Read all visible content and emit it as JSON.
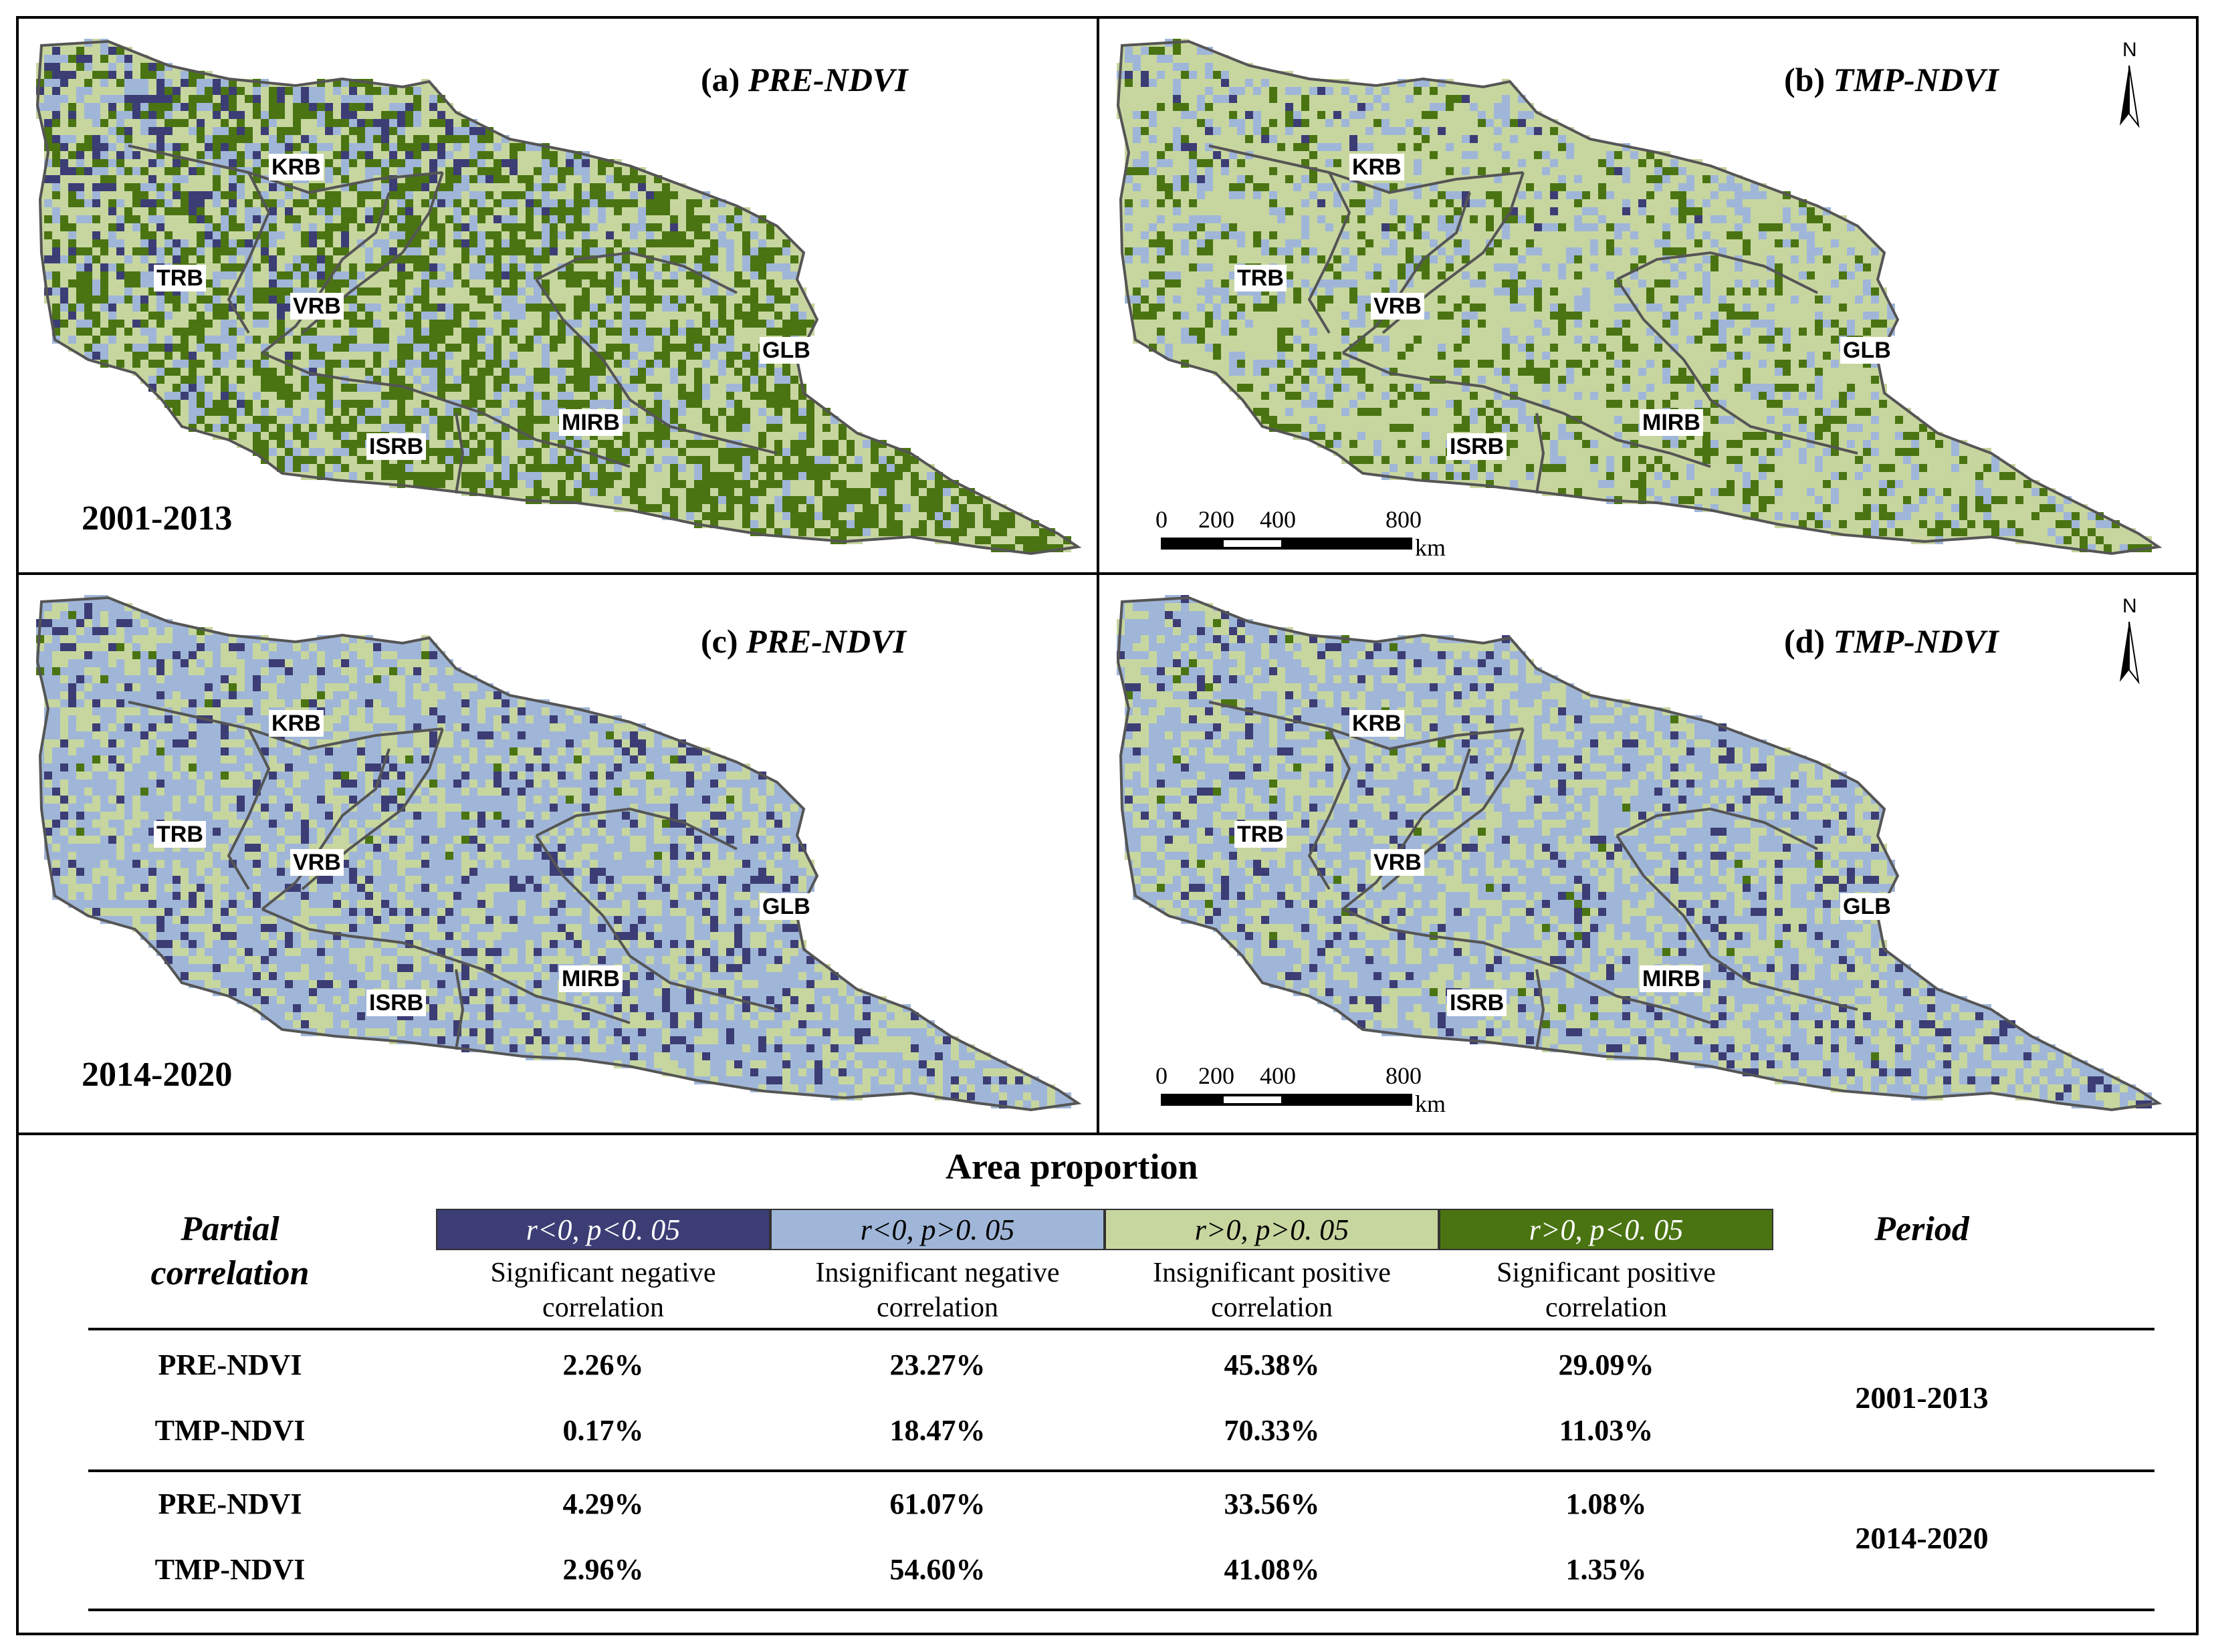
{
  "colors": {
    "sig_neg": "#3c3d75",
    "insig_neg": "#a0b6d8",
    "insig_pos": "#c7d69f",
    "sig_pos": "#4a7412",
    "boundary": "#555555"
  },
  "panels": [
    {
      "id": "a",
      "letter": "(a)",
      "title": "PRE-NDVI",
      "period": "2001-2013",
      "mix": [
        0.05,
        0.22,
        0.38,
        0.35
      ]
    },
    {
      "id": "b",
      "letter": "(b)",
      "title": "TMP-NDVI",
      "period": "",
      "mix": [
        0.01,
        0.2,
        0.66,
        0.13
      ]
    },
    {
      "id": "c",
      "letter": "(c)",
      "title": "PRE-NDVI",
      "period": "2014-2020",
      "mix": [
        0.08,
        0.56,
        0.33,
        0.03
      ]
    },
    {
      "id": "d",
      "letter": "(d)",
      "title": "TMP-NDVI",
      "period": "",
      "mix": [
        0.06,
        0.52,
        0.39,
        0.03
      ]
    }
  ],
  "basins": [
    "KRB",
    "TRB",
    "VRB",
    "GLB",
    "MIRB",
    "ISRB"
  ],
  "north_label": "N",
  "scalebar": {
    "ticks": [
      "0",
      "200",
      "400",
      "800"
    ],
    "unit": "km"
  },
  "table": {
    "title": "Area proportion",
    "row_header": "Partial correlation",
    "period_header": "Period",
    "legend": [
      {
        "label_sym": "r<0, p<0. 05",
        "desc": "Significant negative correlation"
      },
      {
        "label_sym": "r<0, p>0. 05",
        "desc": "Insignificant negative correlation"
      },
      {
        "label_sym": "r>0, p>0. 05",
        "desc": "Insignificant positive correlation"
      },
      {
        "label_sym": "r>0, p<0. 05",
        "desc": "Significant positive correlation"
      }
    ],
    "rows": [
      {
        "name": "PRE-NDVI",
        "values": [
          "2.26%",
          "23.27%",
          "45.38%",
          "29.09%"
        ]
      },
      {
        "name": "TMP-NDVI",
        "values": [
          "0.17%",
          "18.47%",
          "70.33%",
          "11.03%"
        ]
      },
      {
        "name": "PRE-NDVI",
        "values": [
          "4.29%",
          "61.07%",
          "33.56%",
          "1.08%"
        ]
      },
      {
        "name": "TMP-NDVI",
        "values": [
          "2.96%",
          "54.60%",
          "41.08%",
          "1.35%"
        ]
      }
    ],
    "periods": [
      "2001-2013",
      "2014-2020"
    ]
  }
}
